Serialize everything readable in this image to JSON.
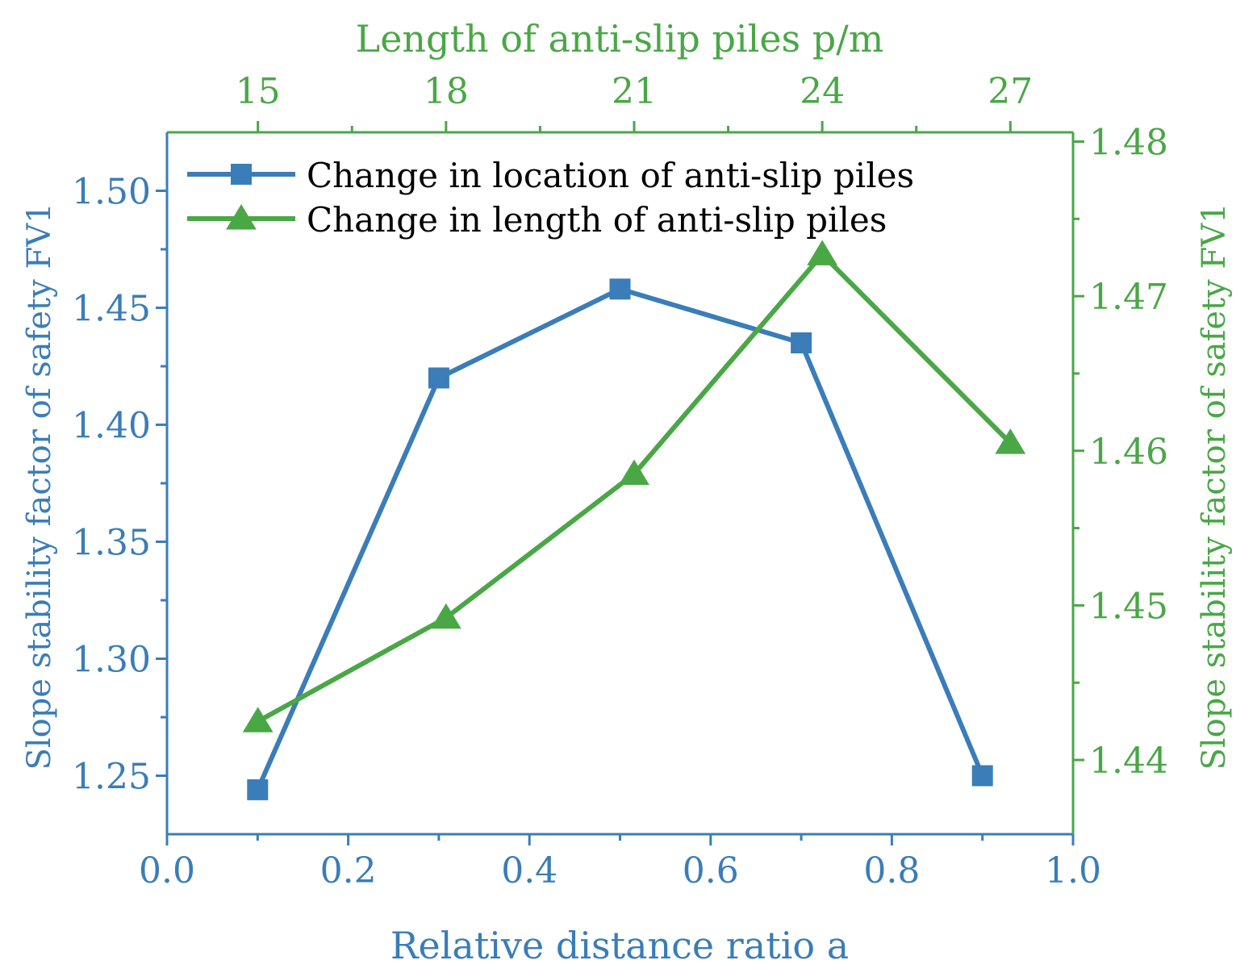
{
  "chart_data": {
    "type": "line",
    "title": "",
    "colors": {
      "blue": "#3a7db8",
      "green": "#4aa746",
      "frame": "#3a7db8",
      "text": "#000000"
    },
    "axes": {
      "bottom": {
        "label": "Relative distance ratio a",
        "range": [
          0.0,
          1.0
        ],
        "ticks": [
          0.0,
          0.2,
          0.4,
          0.6,
          0.8,
          1.0
        ],
        "tick_labels": [
          "0.0",
          "0.2",
          "0.4",
          "0.6",
          "0.8",
          "1.0"
        ]
      },
      "top": {
        "label": "Length of anti-slip piles p/m",
        "range": [
          13.55,
          28.0
        ],
        "ticks": [
          15,
          18,
          21,
          24,
          27
        ],
        "tick_labels": [
          "15",
          "18",
          "21",
          "24",
          "27"
        ]
      },
      "left": {
        "label": "Slope stability factor of safety FV1",
        "range": [
          1.225,
          1.525
        ],
        "ticks": [
          1.25,
          1.3,
          1.35,
          1.4,
          1.45,
          1.5
        ],
        "tick_labels": [
          "1.25",
          "1.30",
          "1.35",
          "1.40",
          "1.45",
          "1.50"
        ]
      },
      "right": {
        "label": "Slope stability factor of safety FV1",
        "range": [
          1.4352,
          1.4806
        ],
        "ticks": [
          1.44,
          1.45,
          1.46,
          1.47,
          1.48
        ],
        "tick_labels": [
          "1.44",
          "1.45",
          "1.46",
          "1.47",
          "1.48"
        ]
      }
    },
    "series": [
      {
        "name": "Change in location of anti-slip piles",
        "axis": "bottom-left",
        "color": "#3a7db8",
        "marker": "square",
        "x": [
          0.1,
          0.3,
          0.5,
          0.7,
          0.9
        ],
        "y": [
          1.244,
          1.42,
          1.458,
          1.435,
          1.25
        ]
      },
      {
        "name": "Change in length of anti-slip piles",
        "axis": "top-right",
        "color": "#4aa746",
        "marker": "triangle",
        "x": [
          15,
          18,
          21,
          24,
          27
        ],
        "y": [
          1.4425,
          1.4492,
          1.4585,
          1.4727,
          1.4605
        ]
      }
    ],
    "legend": {
      "position": "top-left",
      "entries": [
        "Change in location of anti-slip piles",
        "Change in length of anti-slip piles"
      ]
    }
  }
}
